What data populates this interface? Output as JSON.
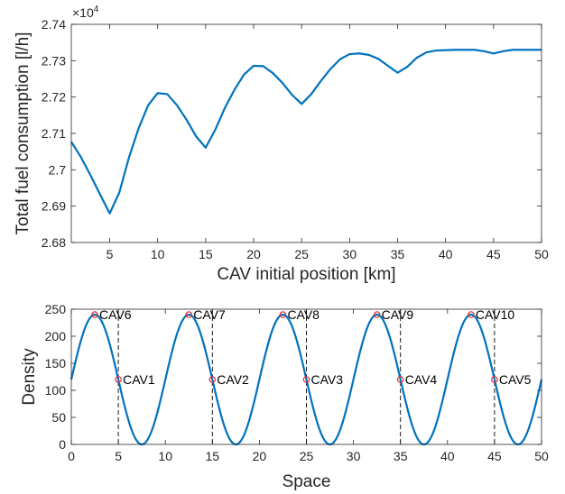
{
  "chart_data": [
    {
      "type": "line",
      "xlabel": "CAV initial position [km]",
      "ylabel": "Total fuel consumption [l/h]",
      "exponent_label": "×10",
      "exponent_power": "4",
      "xlim": [
        1,
        50
      ],
      "ylim": [
        2.68,
        2.74
      ],
      "xticks": [
        "5",
        "10",
        "15",
        "20",
        "25",
        "30",
        "35",
        "40",
        "45",
        "50"
      ],
      "yticks": [
        "2.68",
        "2.69",
        "2.7",
        "2.71",
        "2.72",
        "2.73",
        "2.74"
      ],
      "color": "#0072BD",
      "series": [
        {
          "x": [
            1,
            2,
            3,
            4,
            5,
            6,
            7,
            8,
            9,
            10,
            11,
            12,
            13,
            14,
            15,
            16,
            17,
            18,
            19,
            20,
            21,
            22,
            23,
            24,
            25,
            26,
            27,
            28,
            29,
            30,
            31,
            32,
            33,
            34,
            35,
            36,
            37,
            38,
            39,
            40,
            41,
            42,
            43,
            44,
            45,
            46,
            47,
            48,
            49,
            50
          ],
          "y": [
            2.7077,
            2.7035,
            2.6985,
            2.6932,
            2.688,
            2.6937,
            2.7033,
            2.7113,
            2.7177,
            2.7211,
            2.7208,
            2.7178,
            2.7138,
            2.7092,
            2.7061,
            2.711,
            2.717,
            2.722,
            2.7262,
            2.7286,
            2.7285,
            2.7266,
            2.7239,
            2.7206,
            2.7181,
            2.7208,
            2.7244,
            2.7277,
            2.7304,
            2.7318,
            2.732,
            2.7316,
            2.7305,
            2.7286,
            2.7267,
            2.7283,
            2.7308,
            2.7323,
            2.7328,
            2.7329,
            2.733,
            2.733,
            2.733,
            2.7326,
            2.732,
            2.7326,
            2.733,
            2.733,
            2.733,
            2.733
          ]
        }
      ]
    },
    {
      "type": "line",
      "xlabel": "Space",
      "ylabel": "Density",
      "xlim": [
        0,
        50
      ],
      "ylim": [
        0,
        250
      ],
      "xticks": [
        "0",
        "5",
        "10",
        "15",
        "20",
        "25",
        "30",
        "35",
        "40",
        "45",
        "50"
      ],
      "yticks": [
        "0",
        "50",
        "100",
        "150",
        "200",
        "250"
      ],
      "color": "#0072BD",
      "density_curve": {
        "mean": 120,
        "amplitude": 120,
        "period": 10,
        "phase_x": 5
      },
      "markers": [
        {
          "label": "CAV1",
          "x": 5,
          "y": 120
        },
        {
          "label": "CAV2",
          "x": 15,
          "y": 120
        },
        {
          "label": "CAV3",
          "x": 25,
          "y": 120
        },
        {
          "label": "CAV4",
          "x": 35,
          "y": 120
        },
        {
          "label": "CAV5",
          "x": 45,
          "y": 120
        },
        {
          "label": "CAV6",
          "x": 2.5,
          "y": 240
        },
        {
          "label": "CAV7",
          "x": 12.5,
          "y": 240
        },
        {
          "label": "CAV8",
          "x": 22.5,
          "y": 240
        },
        {
          "label": "CAV9",
          "x": 32.5,
          "y": 240
        },
        {
          "label": "CAV10",
          "x": 42.5,
          "y": 240
        }
      ],
      "dashed_lines_x": [
        5,
        15,
        25,
        35,
        45
      ]
    }
  ]
}
